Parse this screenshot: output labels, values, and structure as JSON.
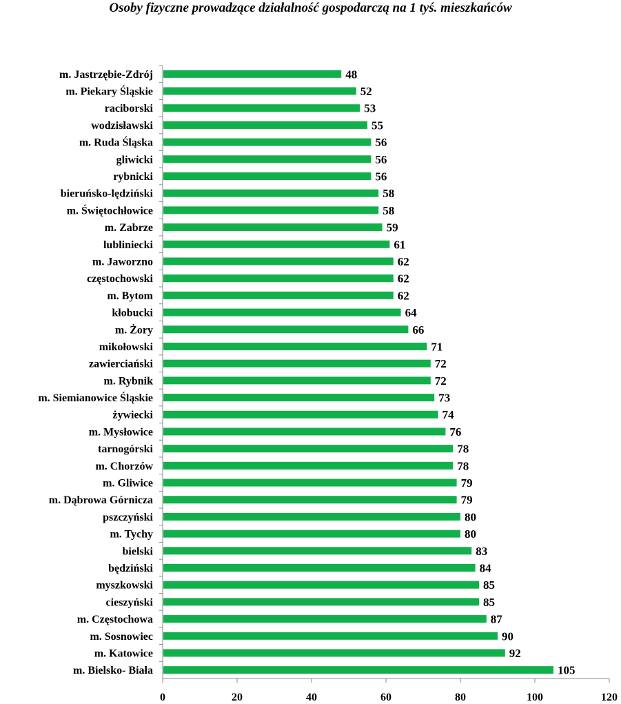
{
  "chart_data": {
    "type": "bar",
    "orientation": "horizontal",
    "title": "Osoby fizyczne prowadzące działalność gospodarczą na 1 tyś. mieszkańców",
    "categories": [
      "m. Jastrzębie-Zdrój",
      "m. Piekary Śląskie",
      "raciborski",
      "wodzisławski",
      "m. Ruda Śląska",
      "gliwicki",
      "rybnicki",
      "bieruńsko-lędziński",
      "m. Świętochłowice",
      "m. Zabrze",
      "lubliniecki",
      "m. Jaworzno",
      "częstochowski",
      "m. Bytom",
      "kłobucki",
      "m. Żory",
      "mikołowski",
      "zawierciański",
      "m. Rybnik",
      "m. Siemianowice Śląskie",
      "żywiecki",
      "m. Mysłowice",
      "tarnogórski",
      "m. Chorzów",
      "m. Gliwice",
      "m. Dąbrowa Górnicza",
      "pszczyński",
      "m. Tychy",
      "bielski",
      "będziński",
      "myszkowski",
      "cieszyński",
      "m. Częstochowa",
      "m. Sosnowiec",
      "m. Katowice",
      "m. Bielsko- Biała"
    ],
    "values": [
      48,
      52,
      53,
      55,
      56,
      56,
      56,
      58,
      58,
      59,
      61,
      62,
      62,
      62,
      64,
      66,
      71,
      72,
      72,
      73,
      74,
      76,
      78,
      78,
      79,
      79,
      80,
      80,
      83,
      84,
      85,
      85,
      87,
      90,
      92,
      105
    ],
    "xlim": [
      0,
      120
    ],
    "xticks": [
      "0",
      "20",
      "40",
      "60",
      "80",
      "100",
      "120"
    ],
    "grid": false,
    "legend": "none",
    "bar_color": "#12b04a"
  }
}
